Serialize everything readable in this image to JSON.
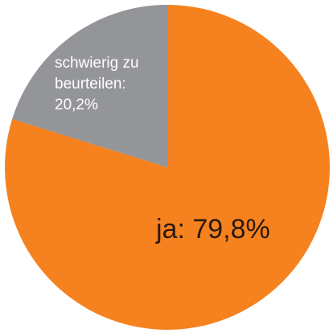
{
  "chart_data": {
    "type": "pie",
    "start_angle_deg": 0,
    "direction": "clockwise",
    "slices": [
      {
        "value": 79.8,
        "color": "#f5821f",
        "label_lines": [
          "ja: 79,8%"
        ]
      },
      {
        "value": 20.2,
        "color": "#939598",
        "label_lines": [
          "schwierig zu",
          "beurteilen:",
          "20,2%"
        ]
      }
    ]
  }
}
